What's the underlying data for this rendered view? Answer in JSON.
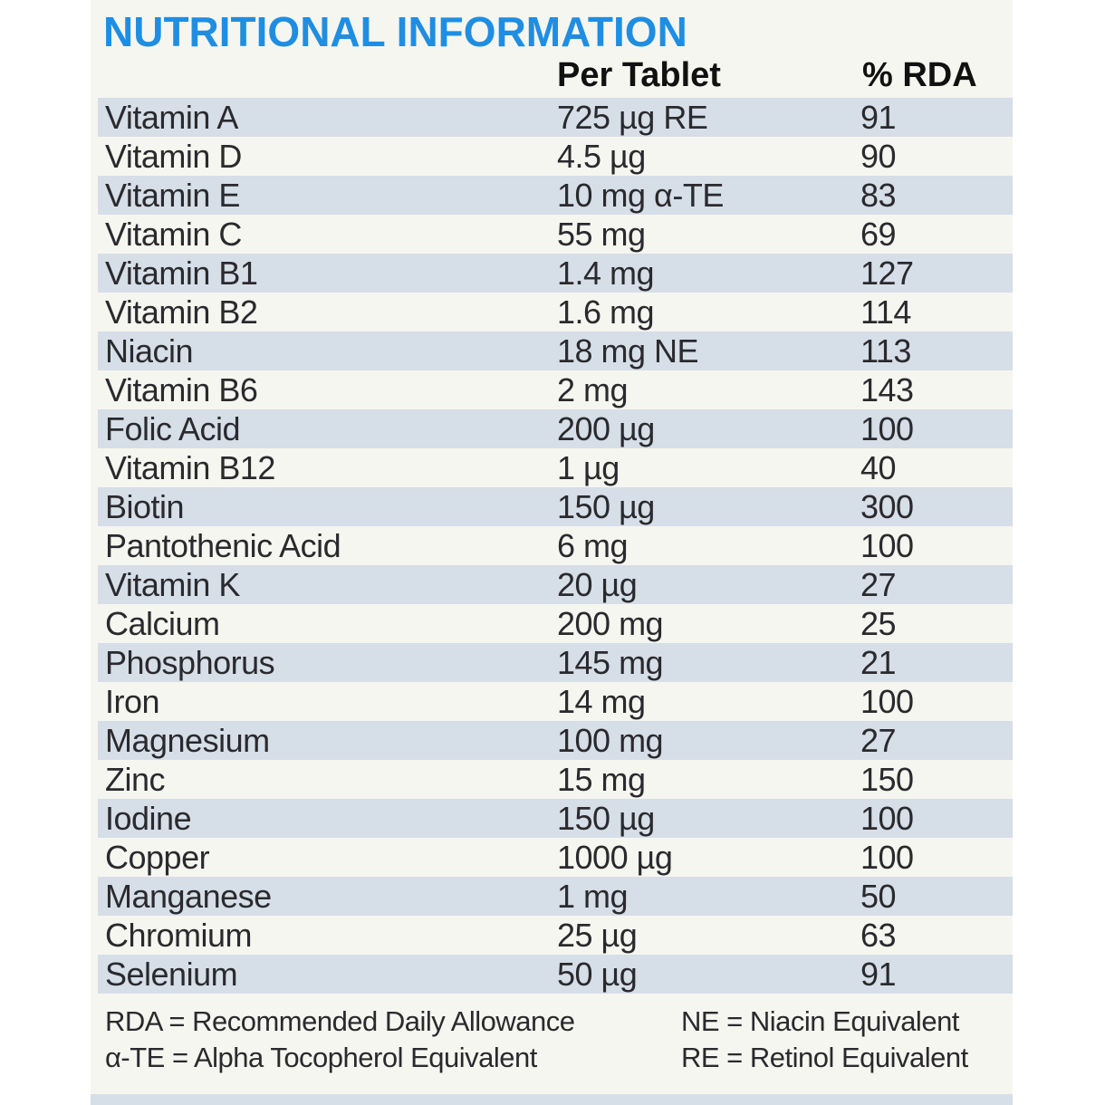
{
  "header": {
    "title": "NUTRITIONAL INFORMATION"
  },
  "table": {
    "columns": [
      "Per Tablet",
      "% RDA"
    ],
    "rows": [
      [
        "Vitamin A",
        "725 µg RE",
        91
      ],
      [
        "Vitamin D",
        "4.5 µg",
        90
      ],
      [
        "Vitamin E",
        "10 mg α-TE",
        83
      ],
      [
        "Vitamin C",
        "55 mg",
        69
      ],
      [
        "Vitamin B1",
        "1.4 mg",
        127
      ],
      [
        "Vitamin B2",
        "1.6 mg",
        114
      ],
      [
        "Niacin",
        "18 mg NE",
        113
      ],
      [
        "Vitamin B6",
        "2 mg",
        143
      ],
      [
        "Folic Acid",
        "200 µg",
        100
      ],
      [
        "Vitamin B12",
        "1 µg",
        40
      ],
      [
        "Biotin",
        "150 µg",
        300
      ],
      [
        "Pantothenic Acid",
        "6 mg",
        100
      ],
      [
        "Vitamin K",
        "20 µg",
        27
      ],
      [
        "Calcium",
        "200 mg",
        25
      ],
      [
        "Phosphorus",
        "145 mg",
        21
      ],
      [
        "Iron",
        "14 mg",
        100
      ],
      [
        "Magnesium",
        "100 mg",
        27
      ],
      [
        "Zinc",
        "15 mg",
        150
      ],
      [
        "Iodine",
        "150 µg",
        100
      ],
      [
        "Copper",
        "1000 µg",
        100
      ],
      [
        "Manganese",
        "1 mg",
        50
      ],
      [
        "Chromium",
        "25 µg",
        63
      ],
      [
        "Selenium",
        "50 µg",
        91
      ]
    ]
  },
  "footnotes": [
    "RDA = Recommended Daily Allowance",
    "NE = Niacin Equivalent",
    "α-TE = Alpha Tocopherol Equivalent",
    "RE = Retinol Equivalent"
  ]
}
